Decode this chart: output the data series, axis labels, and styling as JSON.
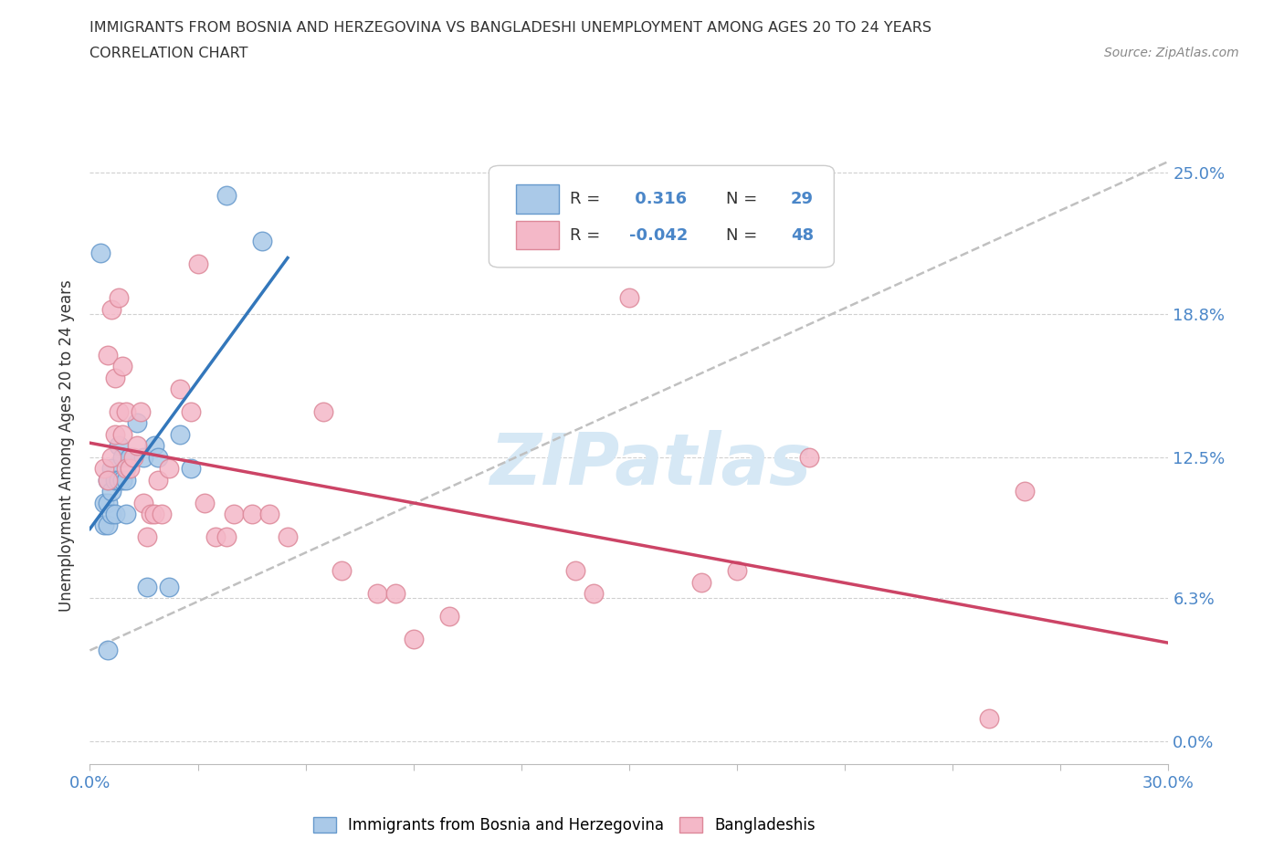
{
  "title_line1": "IMMIGRANTS FROM BOSNIA AND HERZEGOVINA VS BANGLADESHI UNEMPLOYMENT AMONG AGES 20 TO 24 YEARS",
  "title_line2": "CORRELATION CHART",
  "source_text": "Source: ZipAtlas.com",
  "ylabel": "Unemployment Among Ages 20 to 24 years",
  "xlim": [
    0.0,
    0.3
  ],
  "ylim": [
    -0.01,
    0.27
  ],
  "yticks": [
    0.0,
    0.063,
    0.125,
    0.188,
    0.25
  ],
  "ytick_labels": [
    "0.0%",
    "6.3%",
    "12.5%",
    "18.8%",
    "25.0%"
  ],
  "xtick_labels": [
    "0.0%",
    "",
    "",
    "",
    "",
    "",
    "",
    "",
    "",
    "",
    "30.0%"
  ],
  "xticks": [
    0.0,
    0.03,
    0.06,
    0.09,
    0.12,
    0.15,
    0.18,
    0.21,
    0.24,
    0.27,
    0.3
  ],
  "blue_R": 0.316,
  "blue_N": 29,
  "pink_R": -0.042,
  "pink_N": 48,
  "blue_scatter_color": "#aac9e8",
  "pink_scatter_color": "#f4b8c8",
  "blue_edge_color": "#6699cc",
  "pink_edge_color": "#dd8899",
  "blue_line_color": "#3377bb",
  "pink_line_color": "#cc4466",
  "gray_line_color": "#c0c0c0",
  "watermark_color": "#d6e8f5",
  "watermark": "ZIPatlas",
  "legend_label_blue": "Immigrants from Bosnia and Herzegovina",
  "legend_label_pink": "Bangladeshis",
  "blue_x": [
    0.003,
    0.004,
    0.004,
    0.005,
    0.005,
    0.005,
    0.006,
    0.006,
    0.006,
    0.007,
    0.007,
    0.008,
    0.008,
    0.009,
    0.009,
    0.01,
    0.011,
    0.013,
    0.015,
    0.016,
    0.018,
    0.019,
    0.022,
    0.025,
    0.028,
    0.01,
    0.038,
    0.048,
    0.005
  ],
  "blue_y": [
    0.215,
    0.095,
    0.105,
    0.095,
    0.105,
    0.115,
    0.1,
    0.11,
    0.12,
    0.1,
    0.115,
    0.115,
    0.13,
    0.115,
    0.125,
    0.1,
    0.125,
    0.14,
    0.125,
    0.068,
    0.13,
    0.125,
    0.068,
    0.135,
    0.12,
    0.115,
    0.24,
    0.22,
    0.04
  ],
  "pink_x": [
    0.004,
    0.005,
    0.005,
    0.006,
    0.006,
    0.007,
    0.007,
    0.008,
    0.008,
    0.009,
    0.009,
    0.01,
    0.01,
    0.011,
    0.012,
    0.013,
    0.014,
    0.015,
    0.016,
    0.017,
    0.018,
    0.019,
    0.02,
    0.022,
    0.025,
    0.028,
    0.03,
    0.032,
    0.035,
    0.038,
    0.04,
    0.045,
    0.05,
    0.055,
    0.065,
    0.07,
    0.08,
    0.085,
    0.09,
    0.1,
    0.15,
    0.17,
    0.18,
    0.2,
    0.25,
    0.26,
    0.135,
    0.14
  ],
  "pink_y": [
    0.12,
    0.115,
    0.17,
    0.125,
    0.19,
    0.135,
    0.16,
    0.145,
    0.195,
    0.135,
    0.165,
    0.12,
    0.145,
    0.12,
    0.125,
    0.13,
    0.145,
    0.105,
    0.09,
    0.1,
    0.1,
    0.115,
    0.1,
    0.12,
    0.155,
    0.145,
    0.21,
    0.105,
    0.09,
    0.09,
    0.1,
    0.1,
    0.1,
    0.09,
    0.145,
    0.075,
    0.065,
    0.065,
    0.045,
    0.055,
    0.195,
    0.07,
    0.075,
    0.125,
    0.01,
    0.11,
    0.075,
    0.065
  ]
}
